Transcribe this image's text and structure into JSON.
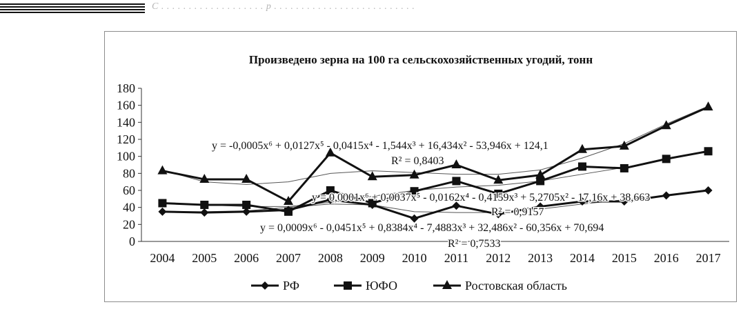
{
  "page": {
    "header_text": "С . . . . . . . . . . . . . . . . . . . р . . . . . . . . . . . . . . . . . . . . . . . . . ."
  },
  "chart_data": {
    "type": "line",
    "title": "Произведено зерна на 100 га сельскохозяйственных угодий, тонн",
    "xlabel": "",
    "ylabel": "",
    "categories": [
      "2004",
      "2005",
      "2006",
      "2007",
      "2008",
      "2009",
      "2010",
      "2011",
      "2012",
      "2013",
      "2014",
      "2015",
      "2016",
      "2017"
    ],
    "ylim": [
      0,
      180
    ],
    "yticks": [
      0,
      20,
      40,
      60,
      80,
      100,
      120,
      140,
      160,
      180
    ],
    "grid": false,
    "legend_position": "bottom",
    "series": [
      {
        "name": "РФ",
        "marker": "diamond",
        "values": [
          35,
          34,
          35,
          37,
          49,
          43,
          27,
          42,
          32,
          41,
          47,
          47,
          54,
          60
        ],
        "trend": [
          35,
          35,
          36,
          40,
          44,
          43,
          35,
          34,
          34,
          38,
          44,
          49,
          54,
          61
        ]
      },
      {
        "name": "ЮФО",
        "marker": "square",
        "values": [
          45,
          43,
          43,
          35,
          60,
          45,
          59,
          71,
          56,
          71,
          88,
          86,
          97,
          106
        ],
        "trend": [
          45,
          43,
          41,
          41,
          46,
          53,
          60,
          64,
          66,
          71,
          79,
          87,
          97,
          106
        ]
      },
      {
        "name": "Ростовская область",
        "marker": "triangle",
        "values": [
          83,
          73,
          73,
          47,
          104,
          76,
          78,
          90,
          72,
          78,
          108,
          112,
          136,
          158
        ],
        "trend": [
          84,
          70,
          67,
          70,
          80,
          83,
          81,
          79,
          79,
          84,
          98,
          115,
          138,
          159
        ]
      }
    ],
    "annotations": [
      {
        "text": "y = -0,0005x⁶ + 0,0127x⁵ - 0,0415x⁴ - 1,544x³ + 16,434x² - 53,946x + 124,1",
        "series": "Ростовская область"
      },
      {
        "text": "R² = 0,8403",
        "series": "Ростовская область"
      },
      {
        "text": "y = 0,0001x⁶ + 0,0037x⁵ - 0,0162x⁴ - 0,4159x³ + 5,2705x² - 17,16x + 38,663",
        "series": "ЮФО"
      },
      {
        "text": "R² = 0,9157",
        "series": "ЮФО"
      },
      {
        "text": "y = 0,0009x⁶ - 0,0451x⁵ + 0,8384x⁴ - 7,4883x³ + 32,486x² - 60,356x + 70,694",
        "series": "РФ"
      },
      {
        "text": "R² = 0,7533",
        "series": "РФ"
      }
    ]
  }
}
